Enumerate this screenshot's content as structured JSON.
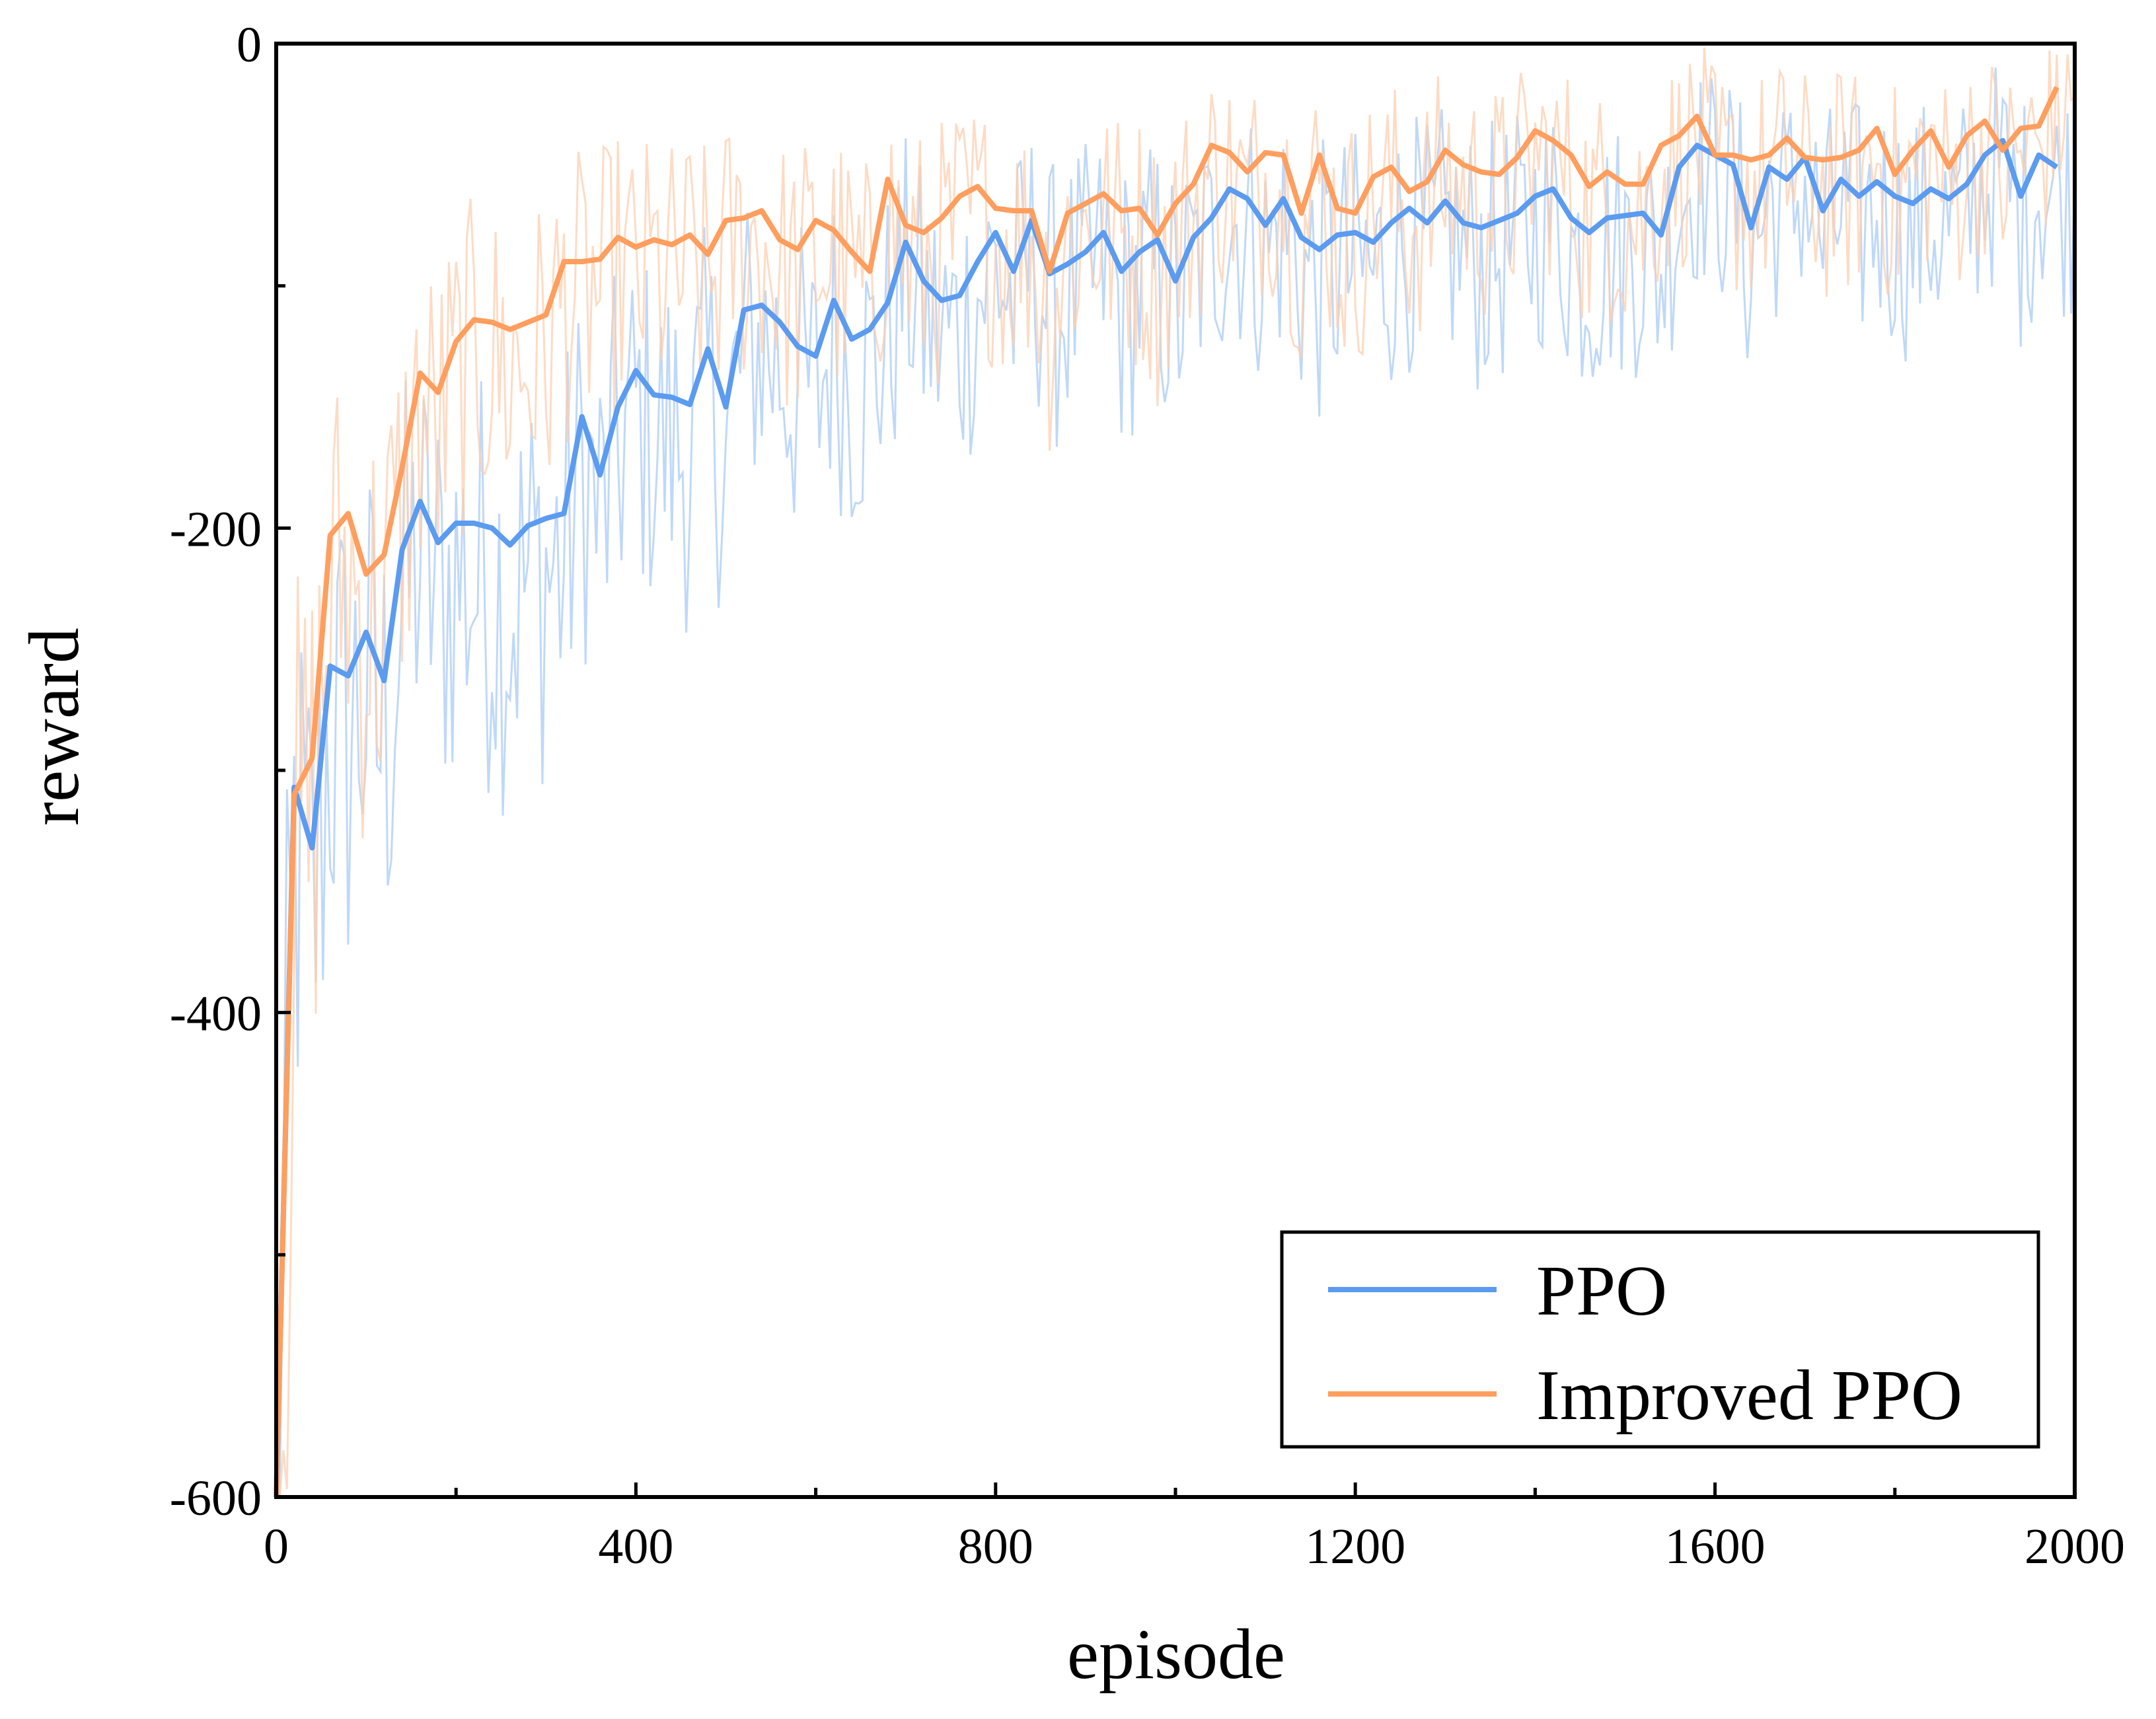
{
  "chart_data": {
    "type": "line",
    "title": "",
    "xlabel": "episode",
    "ylabel": "reward",
    "xlim": [
      0,
      2000
    ],
    "ylim": [
      -600,
      0
    ],
    "xticks": [
      0,
      400,
      800,
      1200,
      1600,
      2000
    ],
    "xtick_labels": [
      "0",
      "400",
      "800",
      "1200",
      "1600",
      "2000"
    ],
    "yticks": [
      0,
      -200,
      -400,
      -600
    ],
    "ytick_labels": [
      "0",
      "-200",
      "-400",
      "-600"
    ],
    "legend_position": "bottom-right",
    "grid": false,
    "series": [
      {
        "name": "PPO",
        "color": "#5B9BF0",
        "raw_color": "#A9CBF6",
        "x": [
          0,
          20,
          40,
          60,
          80,
          100,
          120,
          140,
          160,
          180,
          200,
          220,
          240,
          260,
          280,
          300,
          320,
          340,
          360,
          380,
          400,
          420,
          440,
          460,
          480,
          500,
          520,
          540,
          560,
          580,
          600,
          620,
          640,
          660,
          680,
          700,
          720,
          740,
          760,
          780,
          800,
          820,
          840,
          860,
          880,
          900,
          920,
          940,
          960,
          980,
          1000,
          1020,
          1040,
          1060,
          1080,
          1100,
          1120,
          1140,
          1160,
          1180,
          1200,
          1220,
          1240,
          1260,
          1280,
          1300,
          1320,
          1340,
          1360,
          1380,
          1400,
          1420,
          1440,
          1460,
          1480,
          1500,
          1520,
          1540,
          1560,
          1580,
          1600,
          1620,
          1640,
          1660,
          1680,
          1700,
          1720,
          1740,
          1760,
          1780,
          1800,
          1820,
          1840,
          1860,
          1880,
          1900,
          1920,
          1940,
          1960,
          1980
        ],
        "values": [
          -600,
          -307,
          -332,
          -257,
          -261,
          -243,
          -263,
          -209,
          -189,
          -206,
          -198,
          -198,
          -200,
          -207,
          -199,
          -196,
          -194,
          -154,
          -178,
          -150,
          -135,
          -145,
          -146,
          -149,
          -126,
          -150,
          -110,
          -108,
          -115,
          -125,
          -129,
          -106,
          -122,
          -118,
          -107,
          -82,
          -98,
          -106,
          -104,
          -90,
          -78,
          -94,
          -73,
          -95,
          -91,
          -86,
          -78,
          -94,
          -86,
          -81,
          -98,
          -80,
          -72,
          -60,
          -64,
          -75,
          -64,
          -80,
          -85,
          -79,
          -78,
          -82,
          -74,
          -68,
          -74,
          -65,
          -74,
          -76,
          -73,
          -70,
          -63,
          -60,
          -72,
          -78,
          -72,
          -71,
          -70,
          -79,
          -51,
          -42,
          -46,
          -50,
          -76,
          -51,
          -56,
          -47,
          -69,
          -56,
          -63,
          -57,
          -63,
          -66,
          -60,
          -64,
          -58,
          -46,
          -40,
          -63,
          -46,
          -51
        ]
      },
      {
        "name": "Improved PPO",
        "color": "#FF9E5E",
        "raw_color": "#FCCFB0",
        "x": [
          0,
          20,
          40,
          60,
          80,
          100,
          120,
          140,
          160,
          180,
          200,
          220,
          240,
          260,
          280,
          300,
          320,
          340,
          360,
          380,
          400,
          420,
          440,
          460,
          480,
          500,
          520,
          540,
          560,
          580,
          600,
          620,
          640,
          660,
          680,
          700,
          720,
          740,
          760,
          780,
          800,
          820,
          840,
          860,
          880,
          900,
          920,
          940,
          960,
          980,
          1000,
          1020,
          1040,
          1060,
          1080,
          1100,
          1120,
          1140,
          1160,
          1180,
          1200,
          1220,
          1240,
          1260,
          1280,
          1300,
          1320,
          1340,
          1360,
          1380,
          1400,
          1420,
          1440,
          1460,
          1480,
          1500,
          1520,
          1540,
          1560,
          1580,
          1600,
          1620,
          1640,
          1660,
          1680,
          1700,
          1720,
          1740,
          1760,
          1780,
          1800,
          1820,
          1840,
          1860,
          1880,
          1900,
          1920,
          1940,
          1960,
          1980
        ],
        "values": [
          -600,
          -310,
          -295,
          -203,
          -194,
          -219,
          -211,
          -175,
          -136,
          -144,
          -123,
          -114,
          -115,
          -118,
          -115,
          -112,
          -90,
          -90,
          -89,
          -80,
          -84,
          -81,
          -83,
          -79,
          -87,
          -73,
          -72,
          -69,
          -81,
          -85,
          -73,
          -77,
          -86,
          -94,
          -56,
          -75,
          -78,
          -72,
          -63,
          -59,
          -68,
          -69,
          -69,
          -94,
          -70,
          -66,
          -62,
          -69,
          -68,
          -79,
          -66,
          -58,
          -42,
          -45,
          -53,
          -45,
          -46,
          -70,
          -46,
          -68,
          -70,
          -55,
          -51,
          -61,
          -57,
          -44,
          -50,
          -53,
          -54,
          -47,
          -36,
          -40,
          -46,
          -59,
          -53,
          -58,
          -58,
          -42,
          -38,
          -30,
          -46,
          -46,
          -48,
          -46,
          -39,
          -47,
          -48,
          -47,
          -44,
          -35,
          -54,
          -44,
          -36,
          -51,
          -38,
          -32,
          -44,
          -35,
          -34,
          -18
        ]
      }
    ]
  }
}
